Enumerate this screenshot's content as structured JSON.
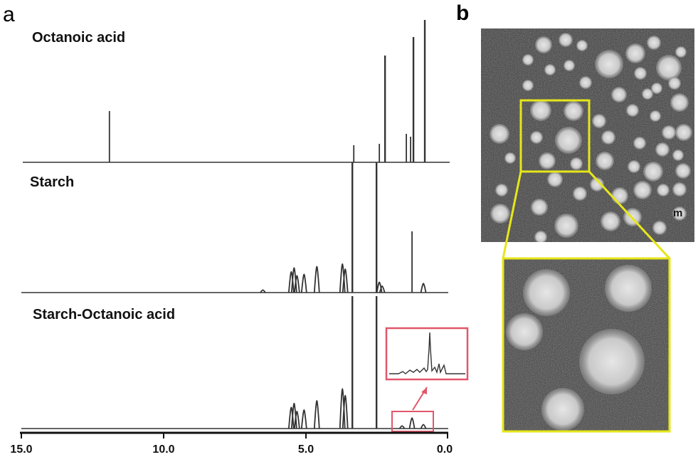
{
  "panels": {
    "a": "a",
    "b": "b"
  },
  "colors": {
    "trace": "#333333",
    "inset_box": "#e2566a",
    "tem_box": "#e6e61a",
    "tem_background": "#2b2b2b"
  },
  "chart_data": {
    "type": "line",
    "xlabel": "",
    "ylabel": "",
    "xlim": [
      15.0,
      0.0
    ],
    "x_reversed": true,
    "x_ticks": [
      "15.0",
      "10.0",
      "5.0",
      "0.0"
    ],
    "x_tick_values": [
      15.0,
      10.0,
      5.0,
      0.0
    ],
    "grid": false,
    "series": [
      {
        "name": "Octanoic acid",
        "peaks": [
          {
            "x": 11.9,
            "height": 0.36
          },
          {
            "x": 3.3,
            "height": 0.12
          },
          {
            "x": 2.4,
            "height": 0.13
          },
          {
            "x": 2.2,
            "height": 0.75
          },
          {
            "x": 1.45,
            "height": 0.2
          },
          {
            "x": 1.3,
            "height": 0.18
          },
          {
            "x": 1.2,
            "height": 0.88
          },
          {
            "x": 0.8,
            "height": 1.0
          }
        ]
      },
      {
        "name": "Starch",
        "peaks": [
          {
            "x": 6.5,
            "height": 0.02
          },
          {
            "x": 5.5,
            "height": 0.16
          },
          {
            "x": 5.4,
            "height": 0.19
          },
          {
            "x": 5.3,
            "height": 0.13
          },
          {
            "x": 5.05,
            "height": 0.14
          },
          {
            "x": 4.6,
            "height": 0.2
          },
          {
            "x": 3.7,
            "height": 0.22
          },
          {
            "x": 3.6,
            "height": 0.18
          },
          {
            "x": 3.35,
            "height": 1.0
          },
          {
            "x": 2.5,
            "height": 1.0
          },
          {
            "x": 2.4,
            "height": 0.08
          },
          {
            "x": 2.3,
            "height": 0.05
          },
          {
            "x": 1.25,
            "height": 0.47
          },
          {
            "x": 0.85,
            "height": 0.07
          }
        ]
      },
      {
        "name": "Starch-Octanoic acid",
        "peaks": [
          {
            "x": 5.5,
            "height": 0.16
          },
          {
            "x": 5.4,
            "height": 0.19
          },
          {
            "x": 5.3,
            "height": 0.13
          },
          {
            "x": 5.05,
            "height": 0.14
          },
          {
            "x": 4.6,
            "height": 0.21
          },
          {
            "x": 3.7,
            "height": 0.3
          },
          {
            "x": 3.6,
            "height": 0.25
          },
          {
            "x": 3.35,
            "height": 1.0
          },
          {
            "x": 2.5,
            "height": 1.0
          },
          {
            "x": 1.6,
            "height": 0.02
          },
          {
            "x": 1.25,
            "height": 0.08
          },
          {
            "x": 0.85,
            "height": 0.03
          }
        ]
      }
    ]
  }
}
